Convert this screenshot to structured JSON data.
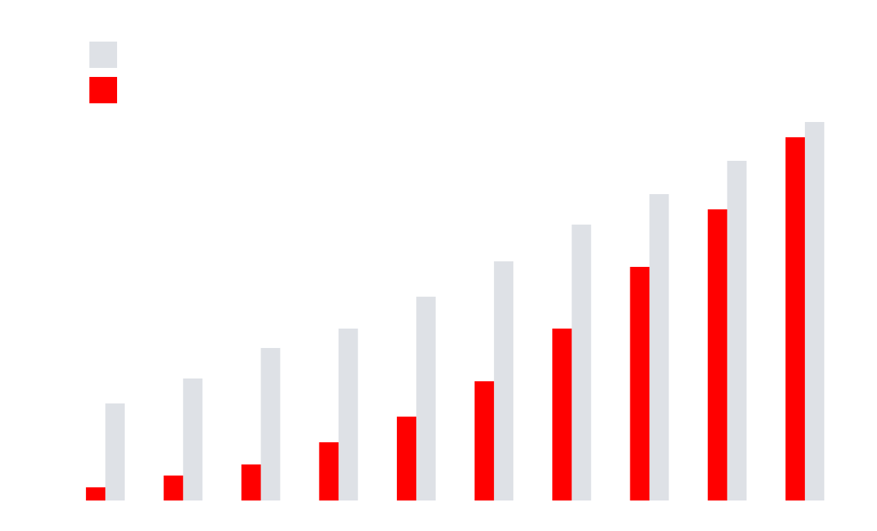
{
  "chart_data": {
    "type": "bar",
    "categories": [
      null,
      null,
      null,
      null,
      null,
      null,
      null,
      null,
      null,
      null
    ],
    "series": [
      {
        "color": "#dee1e6",
        "values": [
          140,
          176,
          220,
          248,
          294,
          345,
          398,
          442,
          490,
          546
        ]
      },
      {
        "color": "#ff0000",
        "values": [
          19,
          36,
          52,
          84,
          121,
          172,
          248,
          337,
          420,
          524
        ]
      }
    ],
    "ylim": [
      0,
      600
    ]
  }
}
